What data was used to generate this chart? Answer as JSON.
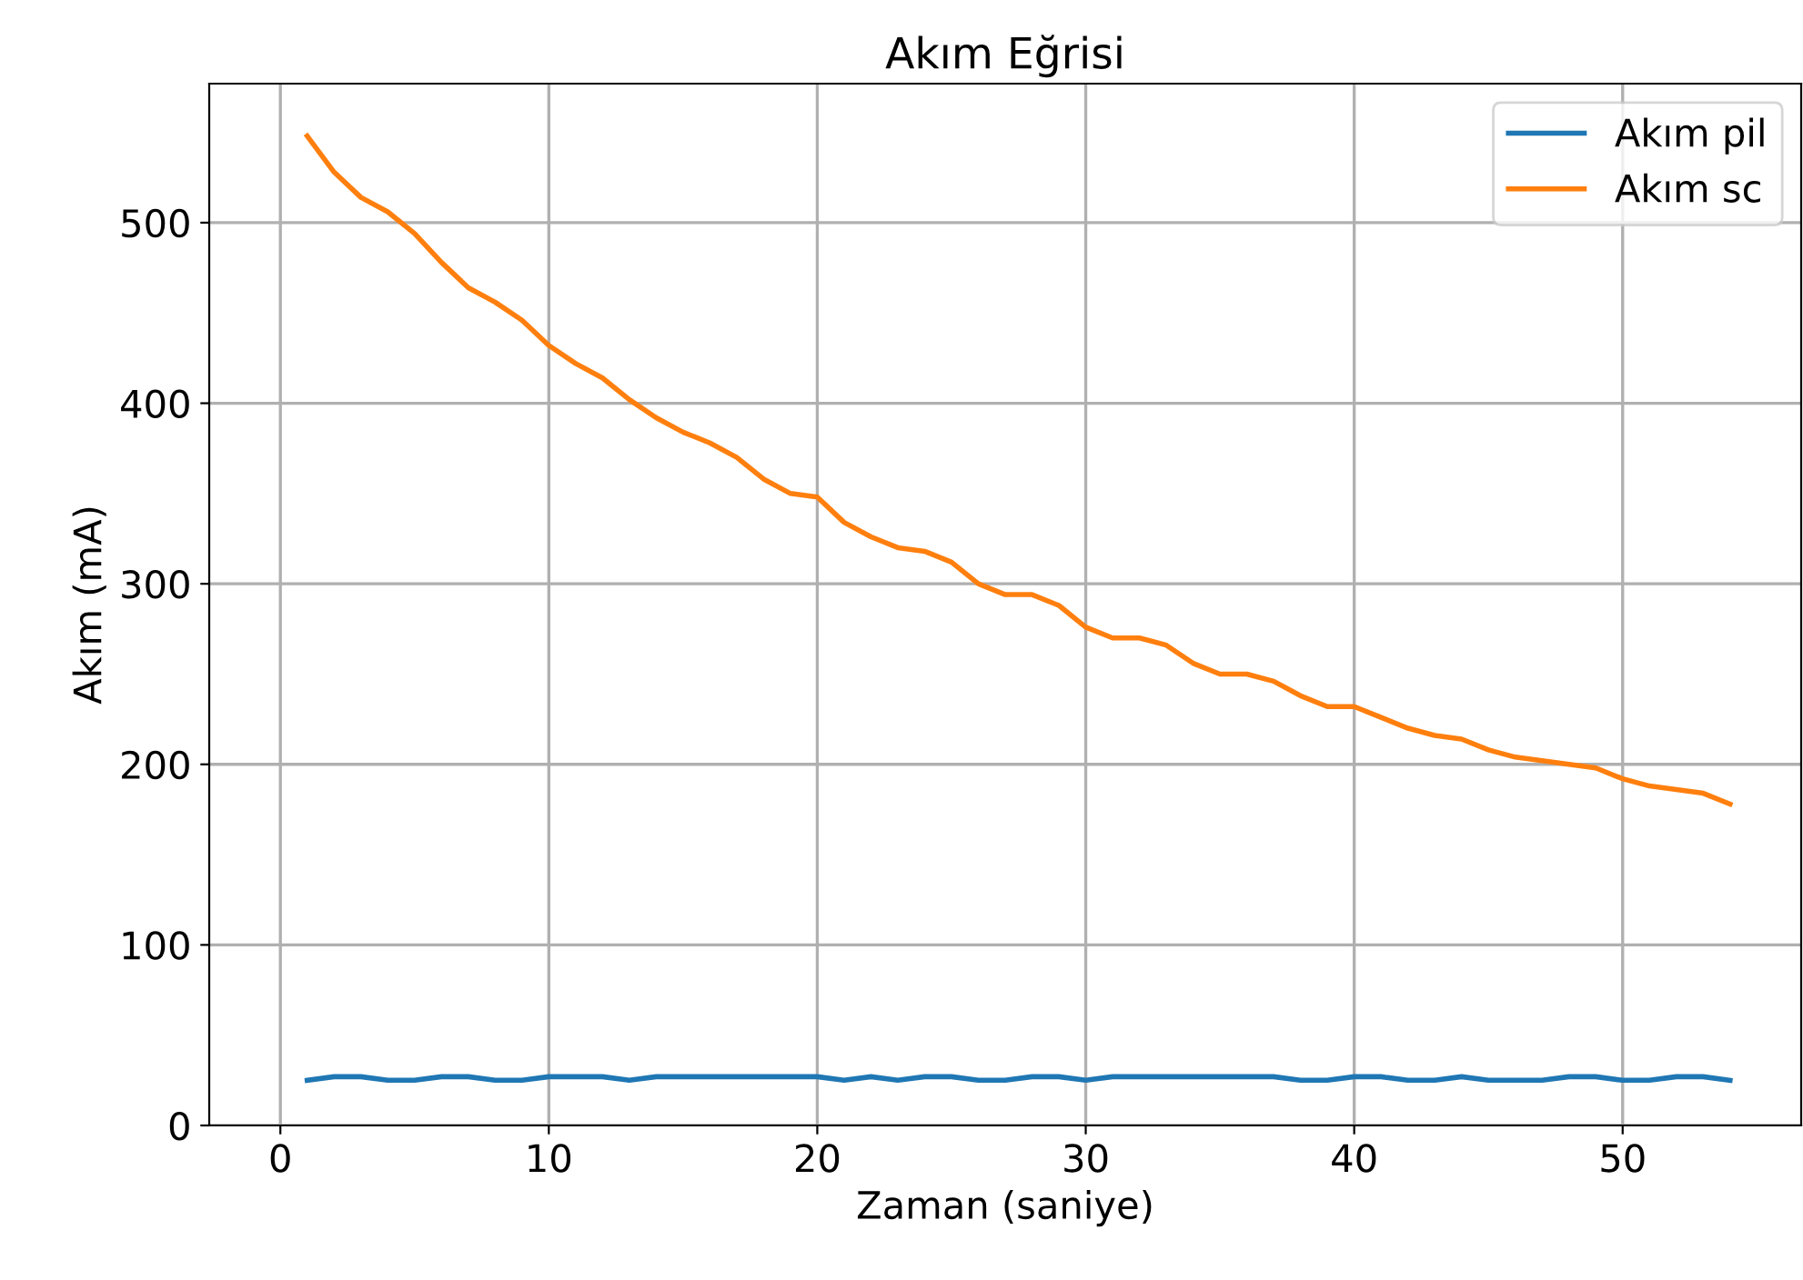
{
  "chart_data": {
    "type": "line",
    "title": "Akım Eğrisi",
    "xlabel": "Zaman (saniye)",
    "ylabel": "Akım (mA)",
    "x": [
      1,
      2,
      3,
      4,
      5,
      6,
      7,
      8,
      9,
      10,
      11,
      12,
      13,
      14,
      15,
      16,
      17,
      18,
      19,
      20,
      21,
      22,
      23,
      24,
      25,
      26,
      27,
      28,
      29,
      30,
      31,
      32,
      33,
      34,
      35,
      36,
      37,
      38,
      39,
      40,
      41,
      42,
      43,
      44,
      45,
      46,
      47,
      48,
      49,
      50,
      51,
      52,
      53,
      54
    ],
    "series": [
      {
        "name": "Akım pil",
        "color": "#1f77b4",
        "values": [
          25,
          27,
          27,
          25,
          25,
          27,
          27,
          25,
          25,
          27,
          27,
          27,
          25,
          27,
          27,
          27,
          27,
          27,
          27,
          27,
          25,
          27,
          25,
          27,
          27,
          25,
          25,
          27,
          27,
          25,
          27,
          27,
          27,
          27,
          27,
          27,
          27,
          25,
          25,
          27,
          27,
          25,
          25,
          27,
          25,
          25,
          25,
          27,
          27,
          25,
          25,
          27,
          27,
          25
        ]
      },
      {
        "name": "Akım sc",
        "color": "#ff7f0e",
        "values": [
          548,
          528,
          514,
          506,
          494,
          478,
          464,
          456,
          446,
          432,
          422,
          414,
          402,
          392,
          384,
          378,
          370,
          358,
          350,
          348,
          334,
          326,
          320,
          318,
          312,
          300,
          294,
          294,
          288,
          276,
          270,
          270,
          266,
          256,
          250,
          250,
          246,
          238,
          232,
          232,
          226,
          220,
          216,
          214,
          208,
          204,
          202,
          200,
          198,
          192,
          188,
          186,
          184,
          178
        ]
      }
    ],
    "xlim": [
      -2.65,
      56.65
    ],
    "ylim": [
      0,
      577
    ],
    "xticks": [
      0,
      10,
      20,
      30,
      40,
      50
    ],
    "yticks": [
      0,
      100,
      200,
      300,
      400,
      500
    ],
    "grid": true,
    "legend": "top right",
    "line_style": "solid",
    "marker": "none"
  }
}
